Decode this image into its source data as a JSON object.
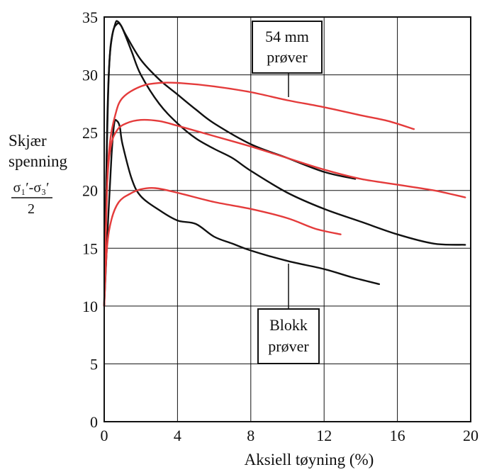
{
  "chart_data": {
    "type": "line",
    "xlabel": "Aksiell tøyning (%)",
    "ylabel": {
      "line1": "Skjær",
      "line2": "spenning",
      "numerator": "σ₁′-σ₃′",
      "denominator": "2"
    },
    "xlim": [
      0,
      20
    ],
    "ylim": [
      0,
      35
    ],
    "x_ticks": [
      0,
      4,
      8,
      12,
      16,
      20
    ],
    "y_ticks": [
      0,
      5,
      10,
      15,
      20,
      25,
      30,
      35
    ],
    "grid": true,
    "annotations": [
      {
        "lines": [
          "54 mm",
          "prøver"
        ],
        "points_to": "red curves"
      },
      {
        "lines": [
          "Blokk",
          "prøver"
        ],
        "points_to": "black curves"
      }
    ],
    "series": [
      {
        "color": "#111111",
        "points": [
          [
            0,
            10
          ],
          [
            0.1,
            20
          ],
          [
            0.2,
            28
          ],
          [
            0.35,
            32.5
          ],
          [
            0.6,
            34.4
          ],
          [
            0.75,
            34.6
          ],
          [
            1,
            34
          ],
          [
            1.5,
            32
          ],
          [
            2,
            30
          ],
          [
            3,
            27.5
          ],
          [
            4,
            25.8
          ],
          [
            5,
            24.5
          ],
          [
            6,
            23.6
          ],
          [
            7,
            22.8
          ],
          [
            8,
            21.7
          ],
          [
            10,
            19.8
          ],
          [
            12,
            18.4
          ],
          [
            14,
            17.3
          ],
          [
            16,
            16.2
          ],
          [
            18,
            15.4
          ],
          [
            19.7,
            15.3
          ]
        ]
      },
      {
        "color": "#111111",
        "points": [
          [
            0,
            10
          ],
          [
            0.1,
            20
          ],
          [
            0.25,
            30
          ],
          [
            0.45,
            33.5
          ],
          [
            0.7,
            34.4
          ],
          [
            0.9,
            34.3
          ],
          [
            1.2,
            33.4
          ],
          [
            2,
            31.3
          ],
          [
            3,
            29.6
          ],
          [
            4,
            28.3
          ],
          [
            5,
            27
          ],
          [
            6,
            25.8
          ],
          [
            8,
            24
          ],
          [
            10,
            22.8
          ],
          [
            12,
            21.6
          ],
          [
            13.7,
            21
          ]
        ]
      },
      {
        "color": "#111111",
        "points": [
          [
            0,
            10
          ],
          [
            0.2,
            17
          ],
          [
            0.4,
            23
          ],
          [
            0.55,
            25.8
          ],
          [
            0.7,
            26
          ],
          [
            0.85,
            25.5
          ],
          [
            1,
            24
          ],
          [
            1.5,
            21
          ],
          [
            2,
            19.5
          ],
          [
            3,
            18.3
          ],
          [
            4,
            17.4
          ],
          [
            5,
            17.1
          ],
          [
            6,
            16
          ],
          [
            7,
            15.4
          ],
          [
            8,
            14.8
          ],
          [
            10,
            13.9
          ],
          [
            12,
            13.2
          ],
          [
            13.5,
            12.5
          ],
          [
            15,
            11.9
          ]
        ]
      },
      {
        "color": "#e43b3b",
        "points": [
          [
            0,
            10
          ],
          [
            0.15,
            20
          ],
          [
            0.3,
            24
          ],
          [
            0.6,
            26.5
          ],
          [
            1,
            28
          ],
          [
            2,
            29
          ],
          [
            3,
            29.3
          ],
          [
            4,
            29.3
          ],
          [
            6,
            29
          ],
          [
            8,
            28.5
          ],
          [
            10,
            27.8
          ],
          [
            12,
            27.2
          ],
          [
            14,
            26.5
          ],
          [
            15.5,
            26
          ],
          [
            16.9,
            25.3
          ]
        ]
      },
      {
        "color": "#e43b3b",
        "points": [
          [
            0,
            10
          ],
          [
            0.15,
            20
          ],
          [
            0.35,
            23.7
          ],
          [
            0.7,
            25.2
          ],
          [
            1.2,
            25.8
          ],
          [
            2,
            26.1
          ],
          [
            3,
            26
          ],
          [
            4,
            25.6
          ],
          [
            6,
            24.7
          ],
          [
            8,
            23.8
          ],
          [
            10,
            22.8
          ],
          [
            12,
            21.8
          ],
          [
            14,
            21
          ],
          [
            16,
            20.5
          ],
          [
            18,
            20
          ],
          [
            19.7,
            19.4
          ]
        ]
      },
      {
        "color": "#e43b3b",
        "points": [
          [
            0,
            10
          ],
          [
            0.15,
            15
          ],
          [
            0.4,
            17.5
          ],
          [
            0.8,
            19
          ],
          [
            1.4,
            19.7
          ],
          [
            2,
            20.1
          ],
          [
            2.8,
            20.2
          ],
          [
            4,
            19.8
          ],
          [
            6,
            19
          ],
          [
            8,
            18.4
          ],
          [
            10,
            17.6
          ],
          [
            11.5,
            16.7
          ],
          [
            12.9,
            16.2
          ]
        ]
      }
    ]
  }
}
